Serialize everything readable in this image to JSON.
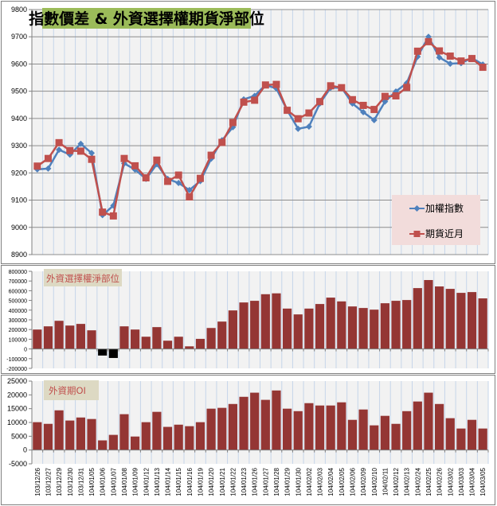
{
  "colors": {
    "index_line": "#4f81bd",
    "futures_line": "#c0504d",
    "bar": "#943634",
    "bar_negative": "#000000",
    "plot_bg": "#f2f2f2",
    "title_bg": "#9bbb59",
    "legend_bg": "#f2dcdb",
    "subtitle_bg": "#ddd9c3",
    "subtitle_text": "#c0504d"
  },
  "dates": [
    "103/12/26",
    "103/12/27",
    "103/12/29",
    "103/12/30",
    "103/12/31",
    "104/01/05",
    "104/01/06",
    "104/01/07",
    "104/01/08",
    "104/01/09",
    "104/01/12",
    "104/01/13",
    "104/01/14",
    "104/01/15",
    "104/01/16",
    "104/01/19",
    "104/01/20",
    "104/01/21",
    "104/01/22",
    "104/01/23",
    "104/01/26",
    "104/01/27",
    "104/01/28",
    "104/01/29",
    "104/01/30",
    "104/02/02",
    "104/02/03",
    "104/02/04",
    "104/02/05",
    "104/02/06",
    "104/02/09",
    "104/02/10",
    "104/02/11",
    "104/02/12",
    "104/02/13",
    "104/02/24",
    "104/02/25",
    "104/02/26",
    "104/03/02",
    "104/03/03",
    "104/03/04",
    "104/03/05"
  ],
  "chart_data": [
    {
      "type": "line",
      "title": "指數價差 & 外資選擇權期貨淨部位",
      "ylim": [
        8900,
        9800
      ],
      "yticks": [
        8900,
        9000,
        9100,
        9200,
        9300,
        9400,
        9500,
        9600,
        9700,
        9800
      ],
      "grid": true,
      "legend": "bottom-right",
      "series": [
        {
          "name": "加權指數",
          "marker": "diamond",
          "values": [
            9213,
            9216,
            9285,
            9267,
            9307,
            9273,
            9045,
            9080,
            9235,
            9212,
            9178,
            9232,
            9178,
            9163,
            9137,
            9170,
            9252,
            9320,
            9368,
            9470,
            9483,
            9523,
            9510,
            9430,
            9362,
            9370,
            9455,
            9513,
            9513,
            9455,
            9423,
            9394,
            9462,
            9499,
            9530,
            9627,
            9700,
            9624,
            9601,
            9603,
            9622,
            9598
          ]
        },
        {
          "name": "期貨近月",
          "marker": "square",
          "values": [
            9225,
            9253,
            9311,
            9282,
            9280,
            9250,
            9056,
            9042,
            9253,
            9226,
            9182,
            9247,
            9169,
            9192,
            9112,
            9180,
            9265,
            9312,
            9385,
            9460,
            9467,
            9523,
            9525,
            9430,
            9399,
            9420,
            9462,
            9520,
            9513,
            9469,
            9448,
            9433,
            9481,
            9483,
            9514,
            9647,
            9682,
            9648,
            9629,
            9611,
            9620,
            9588
          ]
        }
      ]
    },
    {
      "type": "bar",
      "title": "外資選擇權淨部位",
      "ylim": [
        -200000,
        800000
      ],
      "yticks": [
        -200000,
        -100000,
        0,
        100000,
        200000,
        300000,
        400000,
        500000,
        600000,
        700000,
        800000
      ],
      "values": [
        200000,
        233000,
        290000,
        241000,
        258000,
        192000,
        -68000,
        -93000,
        233000,
        200000,
        126000,
        225000,
        85000,
        126000,
        27000,
        104000,
        216000,
        282000,
        397000,
        479000,
        496000,
        564000,
        573000,
        416000,
        356000,
        416000,
        463000,
        529000,
        490000,
        438000,
        422000,
        405000,
        471000,
        496000,
        504000,
        627000,
        710000,
        644000,
        619000,
        578000,
        586000,
        521000
      ]
    },
    {
      "type": "bar",
      "title": "外資期OI",
      "ylim": [
        -5000,
        25000
      ],
      "yticks": [
        -5000,
        0,
        5000,
        10000,
        15000,
        20000,
        25000
      ],
      "values": [
        10100,
        9500,
        14400,
        10700,
        11800,
        11250,
        3500,
        5500,
        13000,
        4900,
        10100,
        13850,
        8400,
        9200,
        8650,
        10100,
        15000,
        15300,
        16700,
        19300,
        20800,
        18200,
        21600,
        15000,
        14100,
        17000,
        16150,
        16150,
        17300,
        10950,
        14700,
        8950,
        12400,
        9500,
        14100,
        17600,
        20800,
        16700,
        11550,
        7800,
        10950,
        7800
      ]
    }
  ]
}
